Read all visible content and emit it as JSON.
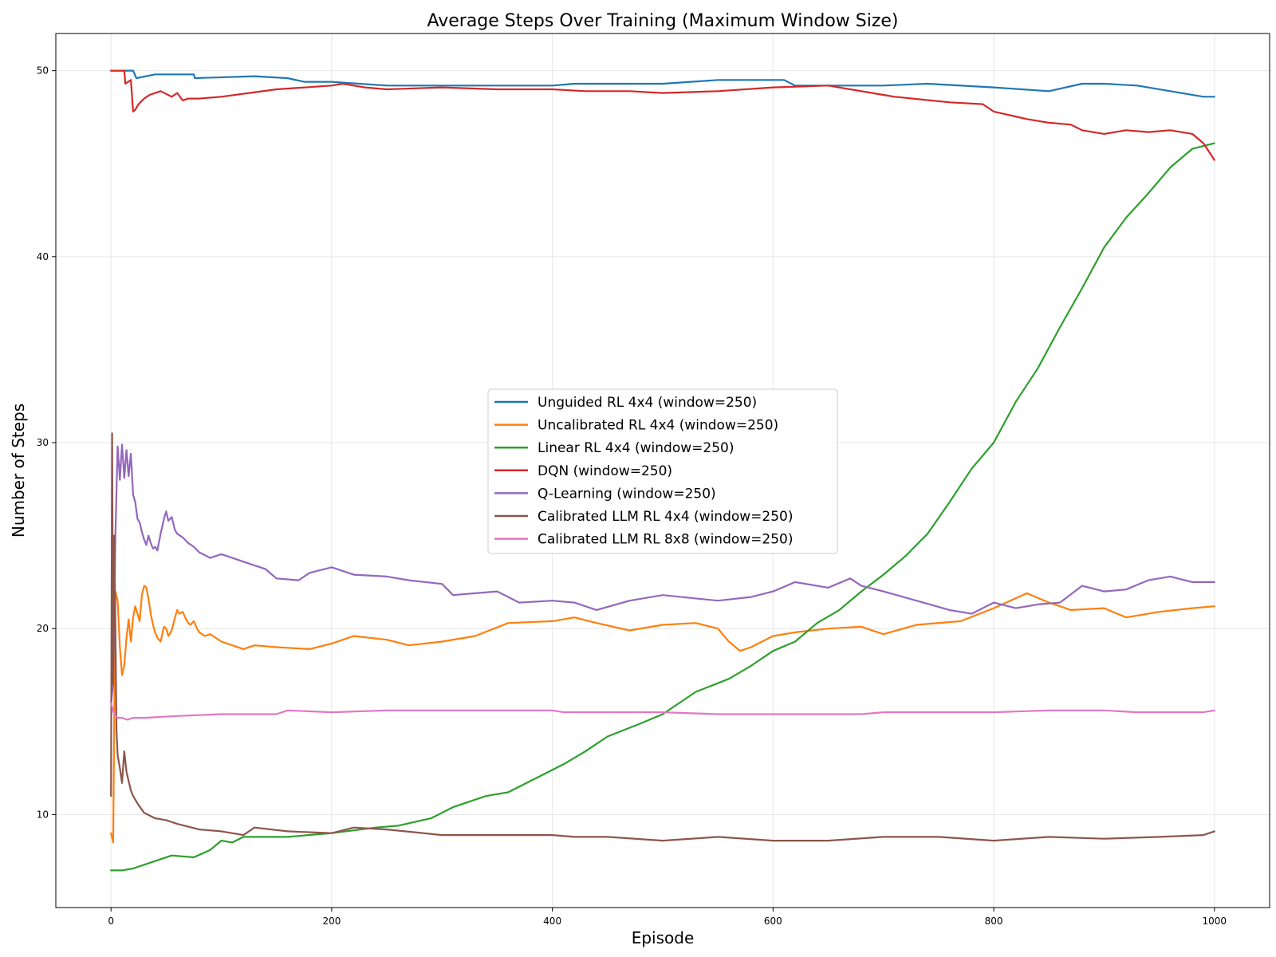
{
  "chart_data": {
    "type": "line",
    "title": "Average Steps Over Training (Maximum Window Size)",
    "xlabel": "Episode",
    "ylabel": "Number of Steps",
    "xlim": [
      -50,
      1050
    ],
    "ylim": [
      5,
      52
    ],
    "xticks": [
      0,
      200,
      400,
      600,
      800,
      1000
    ],
    "yticks": [
      10,
      20,
      30,
      40,
      50
    ],
    "grid": true,
    "legend_position": "center",
    "series": [
      {
        "name": "Unguided RL 4x4 (window=250)",
        "color": "#1f77b4",
        "x": [
          0,
          20,
          23,
          40,
          75,
          76,
          130,
          160,
          175,
          200,
          250,
          300,
          400,
          420,
          500,
          550,
          610,
          620,
          650,
          700,
          740,
          800,
          850,
          880,
          900,
          930,
          960,
          990,
          1000
        ],
        "y": [
          50,
          50,
          49.6,
          49.8,
          49.8,
          49.6,
          49.7,
          49.6,
          49.4,
          49.4,
          49.2,
          49.2,
          49.2,
          49.3,
          49.3,
          49.5,
          49.5,
          49.2,
          49.2,
          49.2,
          49.3,
          49.1,
          48.9,
          49.3,
          49.3,
          49.2,
          48.9,
          48.6,
          48.6
        ]
      },
      {
        "name": "Uncalibrated RL 4x4 (window=250)",
        "color": "#ff7f0e",
        "x": [
          0,
          2,
          4,
          6,
          8,
          10,
          12,
          14,
          16,
          18,
          20,
          22,
          24,
          26,
          28,
          30,
          32,
          34,
          36,
          38,
          40,
          42,
          45,
          48,
          50,
          52,
          55,
          58,
          60,
          62,
          65,
          68,
          70,
          72,
          75,
          78,
          80,
          85,
          90,
          95,
          100,
          110,
          120,
          130,
          150,
          180,
          200,
          220,
          250,
          270,
          300,
          330,
          360,
          400,
          420,
          440,
          470,
          500,
          530,
          550,
          560,
          570,
          580,
          600,
          620,
          650,
          680,
          700,
          730,
          770,
          800,
          830,
          850,
          870,
          900,
          920,
          950,
          980,
          1000
        ],
        "y": [
          9,
          8.5,
          22,
          21.5,
          19,
          17.5,
          18,
          19.5,
          20.5,
          19.3,
          20.6,
          21.2,
          20.8,
          20.4,
          21.8,
          22.3,
          22.2,
          21.6,
          20.8,
          20.2,
          19.8,
          19.5,
          19.3,
          20.1,
          20.0,
          19.6,
          19.9,
          20.6,
          21.0,
          20.8,
          20.9,
          20.5,
          20.3,
          20.2,
          20.4,
          20.0,
          19.8,
          19.6,
          19.7,
          19.5,
          19.3,
          19.1,
          18.9,
          19.1,
          19.0,
          18.9,
          19.2,
          19.6,
          19.4,
          19.1,
          19.3,
          19.6,
          20.3,
          20.4,
          20.6,
          20.3,
          19.9,
          20.2,
          20.3,
          20.0,
          19.3,
          18.8,
          19.0,
          19.6,
          19.8,
          20.0,
          20.1,
          19.7,
          20.2,
          20.4,
          21.1,
          21.9,
          21.4,
          21.0,
          21.1,
          20.6,
          20.9,
          21.1,
          21.2
        ]
      },
      {
        "name": "Linear RL 4x4 (window=250)",
        "color": "#2ca02c",
        "x": [
          0,
          10,
          20,
          40,
          55,
          75,
          90,
          100,
          110,
          120,
          160,
          200,
          240,
          260,
          290,
          310,
          340,
          360,
          380,
          410,
          430,
          450,
          480,
          500,
          530,
          560,
          580,
          600,
          620,
          640,
          660,
          680,
          700,
          720,
          740,
          760,
          780,
          800,
          820,
          840,
          860,
          880,
          900,
          920,
          940,
          960,
          980,
          1000
        ],
        "y": [
          7,
          7,
          7.1,
          7.5,
          7.8,
          7.7,
          8.1,
          8.6,
          8.5,
          8.8,
          8.8,
          9.0,
          9.3,
          9.4,
          9.8,
          10.4,
          11.0,
          11.2,
          11.8,
          12.7,
          13.4,
          14.2,
          14.9,
          15.4,
          16.6,
          17.3,
          18.0,
          18.8,
          19.3,
          20.3,
          21.0,
          22.0,
          22.9,
          23.9,
          25.1,
          26.8,
          28.6,
          30.0,
          32.2,
          34.0,
          36.2,
          38.3,
          40.5,
          42.1,
          43.4,
          44.8,
          45.8,
          46.1
        ]
      },
      {
        "name": "DQN (window=250)",
        "color": "#d62728",
        "x": [
          0,
          12,
          13,
          18,
          20,
          22,
          25,
          30,
          35,
          45,
          55,
          60,
          65,
          70,
          80,
          100,
          150,
          200,
          210,
          230,
          250,
          300,
          350,
          400,
          430,
          470,
          500,
          550,
          600,
          650,
          700,
          710,
          760,
          790,
          800,
          830,
          850,
          870,
          880,
          900,
          920,
          940,
          960,
          980,
          990,
          1000
        ],
        "y": [
          50,
          50,
          49.3,
          49.5,
          47.8,
          47.9,
          48.2,
          48.5,
          48.7,
          48.9,
          48.6,
          48.8,
          48.4,
          48.5,
          48.5,
          48.6,
          49.0,
          49.2,
          49.3,
          49.1,
          49.0,
          49.1,
          49.0,
          49.0,
          48.9,
          48.9,
          48.8,
          48.9,
          49.1,
          49.2,
          48.7,
          48.6,
          48.3,
          48.2,
          47.8,
          47.4,
          47.2,
          47.1,
          46.8,
          46.6,
          46.8,
          46.7,
          46.8,
          46.6,
          46.1,
          45.2
        ]
      },
      {
        "name": "Q-Learning (window=250)",
        "color": "#9467bd",
        "x": [
          0,
          2,
          4,
          6,
          8,
          10,
          12,
          14,
          16,
          18,
          20,
          22,
          24,
          26,
          28,
          30,
          32,
          34,
          36,
          38,
          40,
          42,
          45,
          48,
          50,
          52,
          55,
          58,
          60,
          65,
          70,
          75,
          80,
          90,
          100,
          110,
          120,
          140,
          150,
          170,
          180,
          200,
          220,
          250,
          270,
          300,
          310,
          330,
          350,
          370,
          400,
          420,
          440,
          470,
          500,
          550,
          580,
          600,
          620,
          650,
          670,
          680,
          700,
          730,
          760,
          780,
          800,
          820,
          840,
          860,
          880,
          900,
          920,
          940,
          960,
          980,
          1000
        ],
        "y": [
          16,
          17,
          25,
          29.8,
          28,
          29.9,
          28.1,
          29.6,
          28.2,
          29.4,
          27.2,
          26.8,
          25.9,
          25.7,
          25.2,
          24.8,
          24.5,
          25.0,
          24.6,
          24.3,
          24.4,
          24.2,
          25.1,
          25.9,
          26.3,
          25.8,
          26.0,
          25.3,
          25.1,
          24.9,
          24.6,
          24.4,
          24.1,
          23.8,
          24.0,
          23.8,
          23.6,
          23.2,
          22.7,
          22.6,
          23.0,
          23.3,
          22.9,
          22.8,
          22.6,
          22.4,
          21.8,
          21.9,
          22.0,
          21.4,
          21.5,
          21.4,
          21.0,
          21.5,
          21.8,
          21.5,
          21.7,
          22.0,
          22.5,
          22.2,
          22.7,
          22.3,
          22.0,
          21.5,
          21.0,
          20.8,
          21.4,
          21.1,
          21.3,
          21.4,
          22.3,
          22.0,
          22.1,
          22.6,
          22.8,
          22.5,
          22.5
        ]
      },
      {
        "name": "Calibrated LLM RL 4x4 (window=250)",
        "color": "#8c564b",
        "x": [
          0,
          1,
          2,
          3,
          4,
          5,
          6,
          8,
          10,
          12,
          14,
          16,
          18,
          20,
          25,
          30,
          40,
          50,
          60,
          80,
          100,
          120,
          130,
          160,
          200,
          220,
          250,
          300,
          350,
          400,
          420,
          450,
          500,
          550,
          600,
          650,
          700,
          750,
          800,
          850,
          900,
          950,
          990,
          1000
        ],
        "y": [
          11,
          30.5,
          17,
          25,
          20,
          14.5,
          13.2,
          12.5,
          11.7,
          13.4,
          12.3,
          11.8,
          11.3,
          11.0,
          10.5,
          10.1,
          9.8,
          9.7,
          9.5,
          9.2,
          9.1,
          8.9,
          9.3,
          9.1,
          9.0,
          9.3,
          9.2,
          8.9,
          8.9,
          8.9,
          8.8,
          8.8,
          8.6,
          8.8,
          8.6,
          8.6,
          8.8,
          8.8,
          8.6,
          8.8,
          8.7,
          8.8,
          8.9,
          9.1
        ]
      },
      {
        "name": "Calibrated LLM RL 8x8 (window=250)",
        "color": "#e377c2",
        "x": [
          0,
          3,
          6,
          10,
          15,
          20,
          30,
          60,
          100,
          150,
          160,
          200,
          250,
          300,
          400,
          410,
          500,
          550,
          600,
          680,
          700,
          750,
          800,
          850,
          900,
          930,
          950,
          990,
          1000
        ],
        "y": [
          16,
          15.4,
          15.2,
          15.2,
          15.1,
          15.2,
          15.2,
          15.3,
          15.4,
          15.4,
          15.6,
          15.5,
          15.6,
          15.6,
          15.6,
          15.5,
          15.5,
          15.4,
          15.4,
          15.4,
          15.5,
          15.5,
          15.5,
          15.6,
          15.6,
          15.5,
          15.5,
          15.5,
          15.6
        ]
      }
    ]
  }
}
